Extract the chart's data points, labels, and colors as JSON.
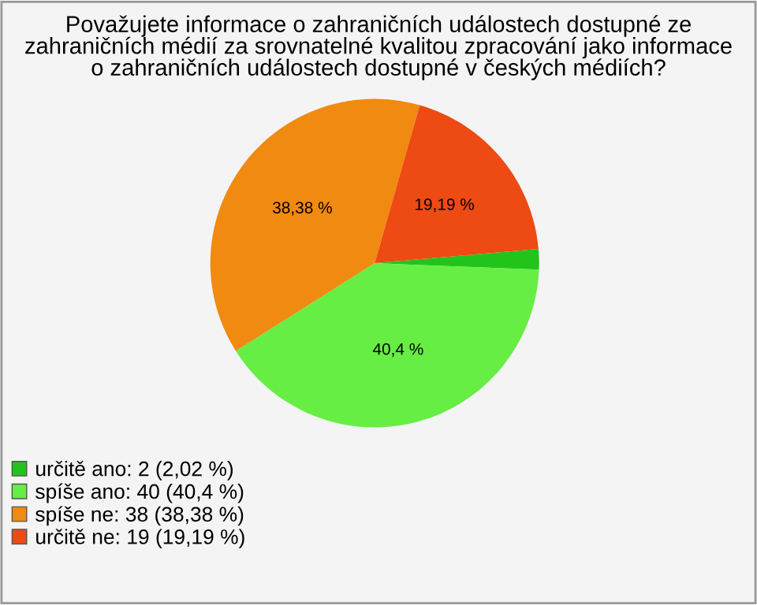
{
  "chart_data": {
    "type": "pie",
    "title": "Považujete informace o zahraničních událostech dostupné ze\nzahraničních médií za srovnatelné kvalitou zpracování jako informace\no zahraničních událostech dostupné v českých médiích?",
    "categories": [
      "určitě ano: 2 (2,02 %)",
      "spíše ano: 40 (40,4 %)",
      "spíše ne: 38 (38,38 %)",
      "určitě ne: 19 (19,19 %)"
    ],
    "values": [
      2.02,
      40.4,
      38.38,
      19.19
    ],
    "value_labels": [
      null,
      "40,4 %",
      "38,38 %",
      "19,19 %"
    ],
    "colors": [
      "#22c41c",
      "#66ee44",
      "#f08a10",
      "#ee4a14"
    ],
    "legend": "bottom left"
  }
}
